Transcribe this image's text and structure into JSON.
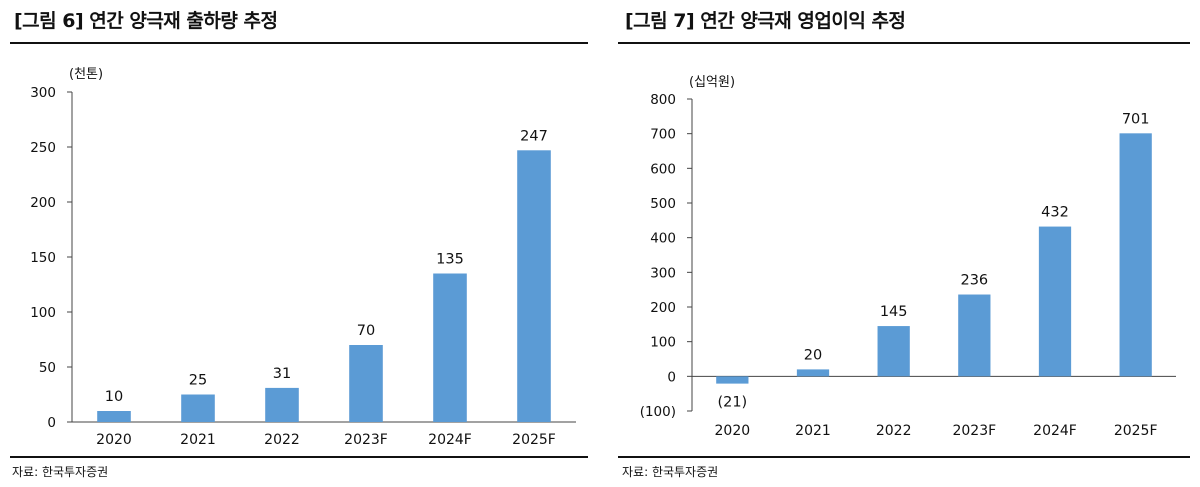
{
  "panels": [
    {
      "title": "[그림 6] 연간 양극재 출하량 추정",
      "source": "자료: 한국투자증권",
      "chart_data": {
        "type": "bar",
        "unit": "(천톤)",
        "categories": [
          "2020",
          "2021",
          "2022",
          "2023F",
          "2024F",
          "2025F"
        ],
        "values": [
          10,
          25,
          31,
          70,
          135,
          247
        ],
        "value_labels": [
          "10",
          "25",
          "31",
          "70",
          "135",
          "247"
        ],
        "ylim": [
          0,
          300
        ],
        "yticks": [
          0,
          50,
          100,
          150,
          200,
          250,
          300
        ],
        "ytick_labels": [
          "0",
          "50",
          "100",
          "150",
          "200",
          "250",
          "300"
        ],
        "bar_color": "#5b9bd5",
        "grid": false
      }
    },
    {
      "title": "[그림 7] 연간 양극재 영업이익 추정",
      "source": "자료: 한국투자증권",
      "chart_data": {
        "type": "bar",
        "unit": "(십억원)",
        "categories": [
          "2020",
          "2021",
          "2022",
          "2023F",
          "2024F",
          "2025F"
        ],
        "values": [
          -21,
          20,
          145,
          236,
          432,
          701
        ],
        "value_labels": [
          "(21)",
          "20",
          "145",
          "236",
          "432",
          "701"
        ],
        "ylim": [
          -100,
          800
        ],
        "yticks": [
          -100,
          0,
          100,
          200,
          300,
          400,
          500,
          600,
          700,
          800
        ],
        "ytick_labels": [
          "(100)",
          "0",
          "100",
          "200",
          "300",
          "400",
          "500",
          "600",
          "700",
          "800"
        ],
        "bar_color": "#5b9bd5",
        "grid": false
      }
    }
  ]
}
